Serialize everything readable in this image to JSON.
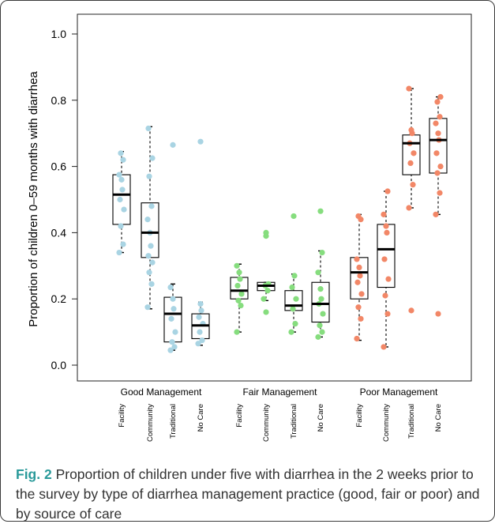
{
  "figure": {
    "label": "Fig. 2",
    "caption": "Proportion of children under five with diarrhea in the 2 weeks prior to the survey by type of diarrhea management practice (good, fair or poor) and by source of care"
  },
  "colors": {
    "good": "#a9d4e3",
    "fair": "#86dd7e",
    "poor": "#f28767"
  },
  "chart_data": {
    "type": "box",
    "ylabel": "Proportion of children 0–59 months with diarrhea",
    "ylim": [
      0.0,
      1.0
    ],
    "yticks": [
      "0.0",
      "0.2",
      "0.4",
      "0.6",
      "0.8",
      "1.0"
    ],
    "groups": [
      {
        "name": "Good Management",
        "color": "#a9d4e3",
        "boxes": [
          {
            "category": "Facility",
            "whisker_low": 0.34,
            "q1": 0.425,
            "median": 0.515,
            "q3": 0.575,
            "whisker_high": 0.645,
            "points": [
              0.34,
              0.365,
              0.42,
              0.47,
              0.5,
              0.53,
              0.56,
              0.575,
              0.62,
              0.64
            ],
            "outliers": []
          },
          {
            "category": "Community",
            "whisker_low": 0.17,
            "q1": 0.325,
            "median": 0.4,
            "q3": 0.49,
            "whisker_high": 0.72,
            "points": [
              0.175,
              0.245,
              0.28,
              0.31,
              0.33,
              0.36,
              0.4,
              0.44,
              0.48,
              0.57,
              0.625,
              0.715
            ],
            "outliers": []
          },
          {
            "category": "Traditional",
            "whisker_low": 0.045,
            "q1": 0.07,
            "median": 0.155,
            "q3": 0.205,
            "whisker_high": 0.245,
            "points": [
              0.045,
              0.055,
              0.07,
              0.1,
              0.14,
              0.17,
              0.2,
              0.235
            ],
            "outliers": [
              0.665
            ]
          },
          {
            "category": "No Care",
            "whisker_low": 0.06,
            "q1": 0.08,
            "median": 0.12,
            "q3": 0.155,
            "whisker_high": 0.19,
            "points": [
              0.065,
              0.075,
              0.1,
              0.125,
              0.145,
              0.165,
              0.185
            ],
            "outliers": [
              0.675
            ]
          }
        ]
      },
      {
        "name": "Fair Management",
        "color": "#86dd7e",
        "boxes": [
          {
            "category": "Facility",
            "whisker_low": 0.1,
            "q1": 0.2,
            "median": 0.225,
            "q3": 0.265,
            "whisker_high": 0.305,
            "points": [
              0.1,
              0.18,
              0.195,
              0.215,
              0.24,
              0.26,
              0.28,
              0.3
            ],
            "outliers": []
          },
          {
            "category": "Community",
            "whisker_low": 0.195,
            "q1": 0.225,
            "median": 0.24,
            "q3": 0.25,
            "whisker_high": 0.25,
            "points": [
              0.2,
              0.225,
              0.24,
              0.245
            ],
            "outliers": [
              0.16,
              0.39,
              0.4
            ]
          },
          {
            "category": "Traditional",
            "whisker_low": 0.1,
            "q1": 0.165,
            "median": 0.18,
            "q3": 0.225,
            "whisker_high": 0.275,
            "points": [
              0.1,
              0.125,
              0.17,
              0.2,
              0.235,
              0.27
            ],
            "outliers": [
              0.45
            ]
          },
          {
            "category": "No Care",
            "whisker_low": 0.085,
            "q1": 0.13,
            "median": 0.185,
            "q3": 0.25,
            "whisker_high": 0.345,
            "points": [
              0.085,
              0.1,
              0.12,
              0.155,
              0.185,
              0.2,
              0.23,
              0.28,
              0.34
            ],
            "outliers": [
              0.465
            ]
          }
        ]
      },
      {
        "name": "Poor Management",
        "color": "#f28767",
        "boxes": [
          {
            "category": "Facility",
            "whisker_low": 0.075,
            "q1": 0.2,
            "median": 0.28,
            "q3": 0.325,
            "whisker_high": 0.455,
            "points": [
              0.08,
              0.14,
              0.175,
              0.215,
              0.25,
              0.27,
              0.295,
              0.32,
              0.44,
              0.45
            ],
            "outliers": []
          },
          {
            "category": "Community",
            "whisker_low": 0.055,
            "q1": 0.235,
            "median": 0.35,
            "q3": 0.425,
            "whisker_high": 0.525,
            "points": [
              0.055,
              0.155,
              0.21,
              0.26,
              0.32,
              0.4,
              0.42,
              0.455,
              0.525
            ],
            "outliers": []
          },
          {
            "category": "Traditional",
            "whisker_low": 0.475,
            "q1": 0.575,
            "median": 0.67,
            "q3": 0.695,
            "whisker_high": 0.835,
            "points": [
              0.475,
              0.545,
              0.61,
              0.64,
              0.67,
              0.7,
              0.71,
              0.835
            ],
            "outliers": [
              0.165
            ]
          },
          {
            "category": "No Care",
            "whisker_low": 0.455,
            "q1": 0.58,
            "median": 0.68,
            "q3": 0.745,
            "whisker_high": 0.81,
            "points": [
              0.455,
              0.52,
              0.58,
              0.6,
              0.64,
              0.68,
              0.7,
              0.73,
              0.75,
              0.795,
              0.81
            ],
            "outliers": [
              0.155
            ]
          }
        ]
      }
    ]
  }
}
